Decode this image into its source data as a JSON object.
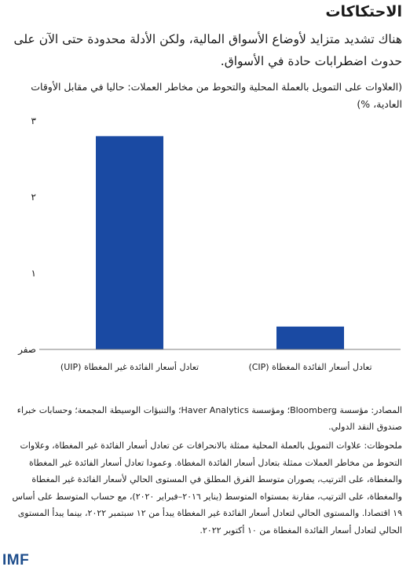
{
  "header": {
    "title": "الاحتكاكات",
    "subtitle": "هناك تشديد متزايد لأوضاع الأسواق المالية، ولكن الأدلة محدودة حتى الآن على حدوث اضطرابات حادة في الأسواق.",
    "units": "(العلاوات على التمويل بالعملة المحلية والتحوط من مخاطر العملات: حاليا في مقابل الأوقات العادية، %)"
  },
  "chart_data": {
    "type": "bar",
    "categories": [
      "تعادل أسعار الفائدة غير المغطاة (UIP)",
      "تعادل أسعار الفائدة المغطاة (CIP)"
    ],
    "values": [
      2.8,
      0.3
    ],
    "ylim": [
      0,
      3
    ],
    "yticks": [
      0,
      1,
      2,
      3
    ],
    "ytick_labels": [
      "صفر",
      "١",
      "٢",
      "٣"
    ],
    "bar_color": "#1a4aa3",
    "axis_color": "#7f7f7f",
    "grid": false,
    "legend": "none"
  },
  "footer": {
    "sources": "المصادر: مؤسسة Bloomberg؛ ومؤسسة Haver Analytics؛ والتنبؤات الوسيطة المجمعة؛ وحسابات خبراء صندوق النقد الدولي.",
    "notes": "ملحوظات: علاوات التمويل بالعملة المحلية ممثلة بالانحرافات عن تعادل أسعار الفائدة غير المغطاة، وعلاوات التحوط من مخاطر العملات ممثلة بتعادل أسعار الفائدة المغطاة. وعمودا تعادل أسعار الفائدة غير المغطاة والمغطاة، على الترتيب، يصوران متوسط الفرق المطلق في المستوى الحالي لأسعار الفائدة غير المغطاة والمغطاة، على الترتيب، مقارنة بمستواه المتوسط (يناير ٢٠١٦–فبراير ٢٠٢٠)، مع حساب المتوسط على أساس ١٩ اقتصادا. والمستوى الحالي لتعادل أسعار الفائدة غير المغطاة يبدأ من ١٢ سبتمبر ٢٠٢٢، بينما يبدأ المستوى الحالي لتعادل أسعار الفائدة المغطاة من ١٠ أكتوبر ٢٠٢٢.",
    "logo": "IMF"
  }
}
